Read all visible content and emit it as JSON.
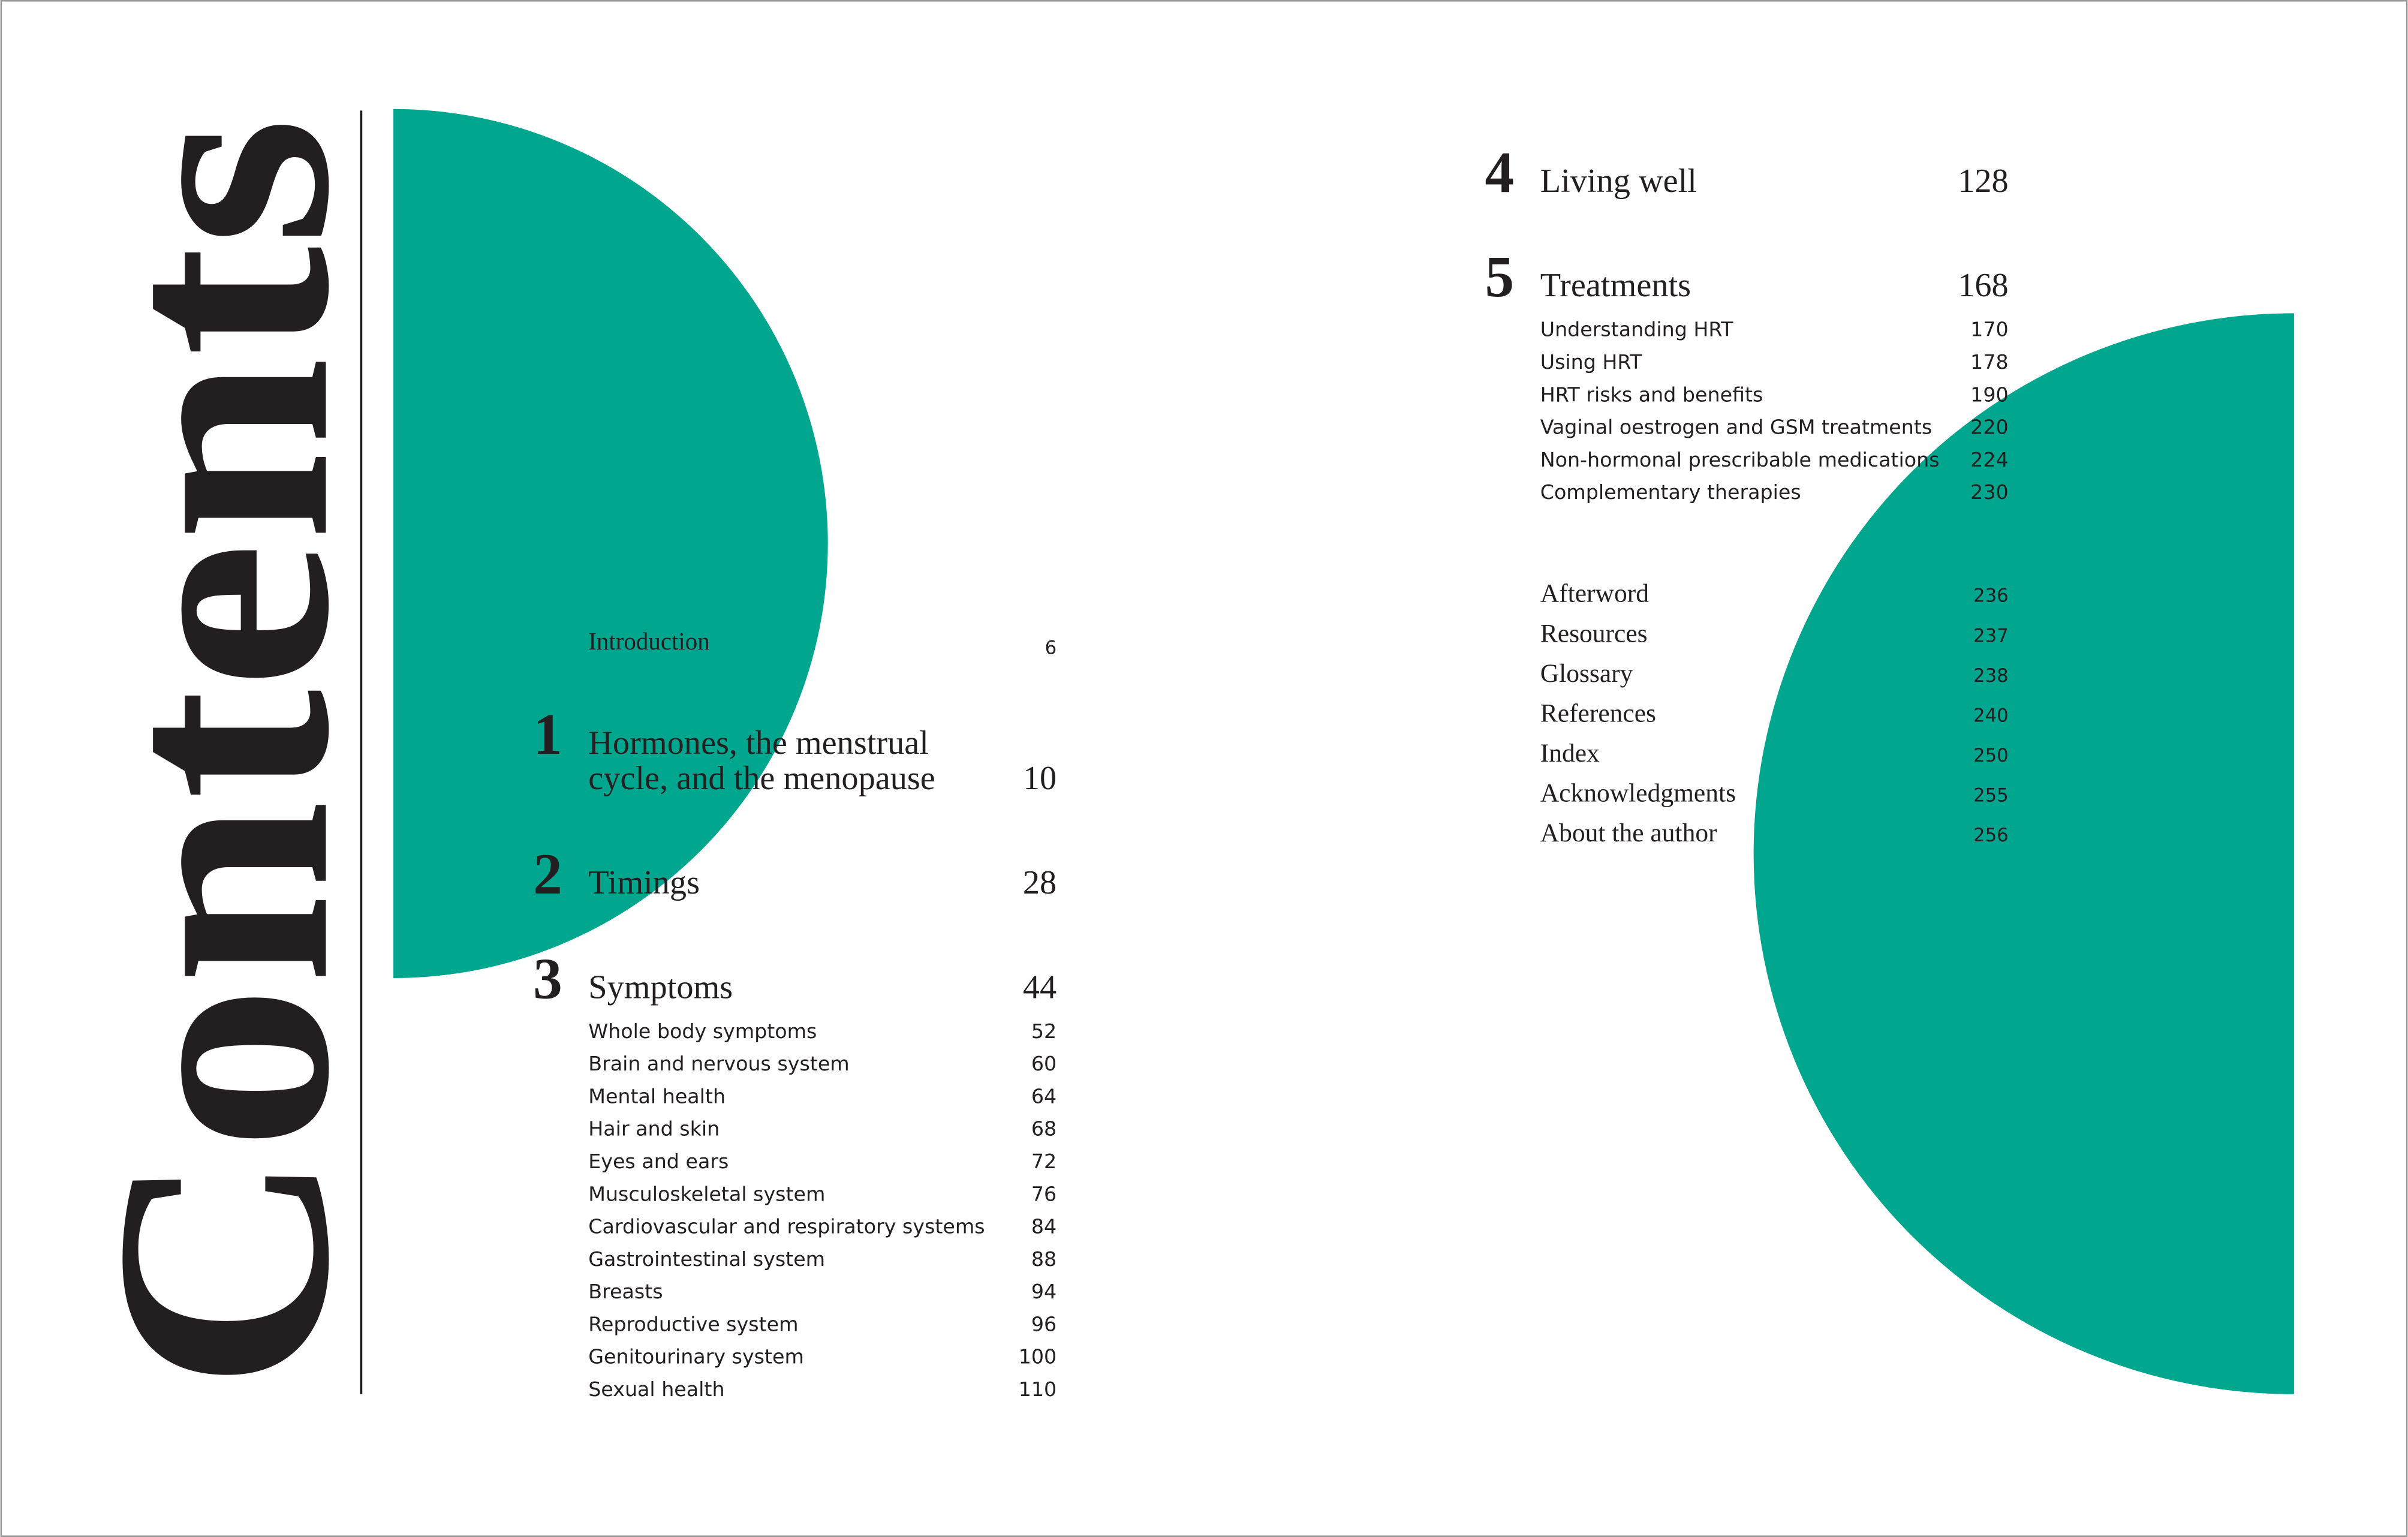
{
  "title": "Contents",
  "introduction": {
    "label": "Introduction",
    "page": 6
  },
  "chapters": [
    {
      "number": "1",
      "title_lines": [
        "Hormones, the menstrual",
        "cycle, and the menopause"
      ],
      "page": 10,
      "items": []
    },
    {
      "number": "2",
      "title_lines": [
        "Timings"
      ],
      "page": 28,
      "items": []
    },
    {
      "number": "3",
      "title_lines": [
        "Symptoms"
      ],
      "page": 44,
      "items": [
        {
          "label": "Whole body symptoms",
          "page": 52
        },
        {
          "label": "Brain and nervous system",
          "page": 60
        },
        {
          "label": "Mental health",
          "page": 64
        },
        {
          "label": "Hair and skin",
          "page": 68
        },
        {
          "label": "Eyes and ears",
          "page": 72
        },
        {
          "label": "Musculoskeletal system",
          "page": 76
        },
        {
          "label": "Cardiovascular and respiratory systems",
          "page": 84
        },
        {
          "label": "Gastrointestinal system",
          "page": 88
        },
        {
          "label": "Breasts",
          "page": 94
        },
        {
          "label": "Reproductive system",
          "page": 96
        },
        {
          "label": "Genitourinary system",
          "page": 100
        },
        {
          "label": "Sexual health",
          "page": 110
        }
      ]
    },
    {
      "number": "4",
      "title_lines": [
        "Living well"
      ],
      "page": 128,
      "items": []
    },
    {
      "number": "5",
      "title_lines": [
        "Treatments"
      ],
      "page": 168,
      "items": [
        {
          "label": "Understanding HRT",
          "page": 170
        },
        {
          "label": "Using HRT",
          "page": 178
        },
        {
          "label": "HRT risks and benefits",
          "page": 190
        },
        {
          "label": "Vaginal oestrogen and GSM treatments",
          "page": 220
        },
        {
          "label": "Non-hormonal prescribable medications",
          "page": 224
        },
        {
          "label": "Complementary therapies",
          "page": 230
        }
      ]
    }
  ],
  "back_matter": [
    {
      "label": "Afterword",
      "page": 236
    },
    {
      "label": "Resources",
      "page": 237
    },
    {
      "label": "Glossary",
      "page": 238
    },
    {
      "label": "References",
      "page": 240
    },
    {
      "label": "Index",
      "page": 250
    },
    {
      "label": "Acknowledgments",
      "page": 255
    },
    {
      "label": "About the author",
      "page": 256
    }
  ]
}
